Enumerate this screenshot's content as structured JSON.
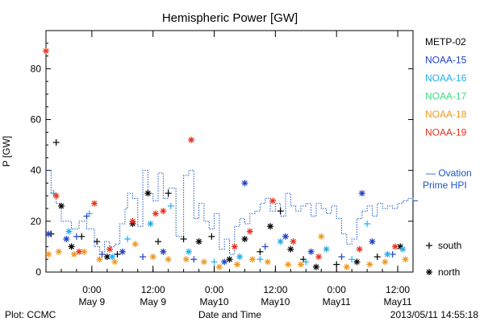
{
  "chart_data": {
    "type": "scatter",
    "title": "Hemispheric Power [GW]",
    "ylabel": "P [GW]",
    "xlabel": "Date and Time",
    "ylim": [
      0,
      95
    ],
    "yticks": [
      0,
      20,
      40,
      60,
      80
    ],
    "xlim": [
      "2013-05-08T15:00",
      "2013-05-11T15:00"
    ],
    "xticks": [
      {
        "t": "2013-05-09T00:00",
        "line1": "0:00",
        "line2": "May 9"
      },
      {
        "t": "2013-05-09T12:00",
        "line1": "12:00",
        "line2": "May 9"
      },
      {
        "t": "2013-05-10T00:00",
        "line1": "0:00",
        "line2": "May10"
      },
      {
        "t": "2013-05-10T12:00",
        "line1": "12:00",
        "line2": "May10"
      },
      {
        "t": "2013-05-11T00:00",
        "line1": "0:00",
        "line2": "May11"
      },
      {
        "t": "2013-05-11T12:00",
        "line1": "12:00",
        "line2": "May11"
      }
    ],
    "series": [
      {
        "name": "METP-02",
        "color": "#000000",
        "points": [
          [
            "2013-05-08T16:00",
            15,
            "south"
          ],
          [
            "2013-05-08T17:00",
            51,
            "south"
          ],
          [
            "2013-05-08T18:00",
            26,
            "north"
          ],
          [
            "2013-05-08T20:00",
            10,
            "north"
          ],
          [
            "2013-05-08T22:00",
            14,
            "south"
          ],
          [
            "2013-05-09T01:00",
            12,
            "south"
          ],
          [
            "2013-05-09T03:00",
            6,
            "north"
          ],
          [
            "2013-05-09T05:00",
            7,
            "south"
          ],
          [
            "2013-05-09T08:00",
            19,
            "north"
          ],
          [
            "2013-05-09T11:00",
            31,
            "north"
          ],
          [
            "2013-05-09T13:00",
            12,
            "south"
          ],
          [
            "2013-05-09T15:00",
            31,
            "south"
          ],
          [
            "2013-05-09T18:00",
            13,
            "south"
          ],
          [
            "2013-05-09T21:00",
            12,
            "north"
          ],
          [
            "2013-05-09T23:30",
            14,
            "south"
          ],
          [
            "2013-05-10T03:00",
            5,
            "north"
          ],
          [
            "2013-05-10T06:00",
            13,
            "north"
          ],
          [
            "2013-05-10T09:00",
            8,
            "south"
          ],
          [
            "2013-05-10T11:00",
            18,
            "north"
          ],
          [
            "2013-05-10T13:00",
            24,
            "south"
          ],
          [
            "2013-05-10T15:00",
            9,
            "north"
          ],
          [
            "2013-05-10T17:30",
            5,
            "south"
          ],
          [
            "2013-05-10T20:00",
            2,
            "north"
          ],
          [
            "2013-05-11T00:00",
            3,
            "south"
          ],
          [
            "2013-05-11T04:00",
            4,
            "north"
          ],
          [
            "2013-05-11T08:00",
            6,
            "south"
          ],
          [
            "2013-05-11T12:30",
            10,
            "north"
          ]
        ]
      },
      {
        "name": "NOAA-15",
        "color": "#1f3fbf",
        "points": [
          [
            "2013-05-08T15:30",
            15,
            "north"
          ],
          [
            "2013-05-08T19:00",
            13,
            "north"
          ],
          [
            "2013-05-08T21:00",
            14,
            "south"
          ],
          [
            "2013-05-08T23:00",
            22,
            "south"
          ],
          [
            "2013-05-09T02:00",
            7,
            "south"
          ],
          [
            "2013-05-09T06:00",
            8,
            "north"
          ],
          [
            "2013-05-09T10:00",
            6,
            "south"
          ],
          [
            "2013-05-09T14:00",
            8,
            "north"
          ],
          [
            "2013-05-09T20:00",
            5,
            "south"
          ],
          [
            "2013-05-10T02:00",
            4,
            "north"
          ],
          [
            "2013-05-10T06:00",
            35,
            "north"
          ],
          [
            "2013-05-10T10:00",
            10,
            "south"
          ],
          [
            "2013-05-10T14:00",
            14,
            "north"
          ],
          [
            "2013-05-10T19:00",
            8,
            "north"
          ],
          [
            "2013-05-11T01:00",
            6,
            "south"
          ],
          [
            "2013-05-11T05:00",
            31,
            "north"
          ],
          [
            "2013-05-11T07:00",
            12,
            "north"
          ],
          [
            "2013-05-11T11:00",
            7,
            "south"
          ]
        ]
      },
      {
        "name": "NOAA-16",
        "color": "#22aeee",
        "points": [
          [
            "2013-05-08T16:30",
            31,
            "south"
          ],
          [
            "2013-05-08T19:30",
            16,
            "north"
          ],
          [
            "2013-05-08T23:30",
            23,
            "south"
          ],
          [
            "2013-05-09T04:00",
            6,
            "north"
          ],
          [
            "2013-05-09T07:00",
            13,
            "south"
          ],
          [
            "2013-05-09T11:30",
            19,
            "north"
          ],
          [
            "2013-05-09T15:30",
            26,
            "south"
          ],
          [
            "2013-05-09T19:00",
            8,
            "north"
          ],
          [
            "2013-05-10T00:00",
            4,
            "south"
          ],
          [
            "2013-05-10T05:00",
            6,
            "north"
          ],
          [
            "2013-05-10T09:00",
            5,
            "south"
          ],
          [
            "2013-05-10T13:00",
            12,
            "north"
          ],
          [
            "2013-05-10T18:00",
            4,
            "south"
          ],
          [
            "2013-05-10T22:00",
            9,
            "north"
          ],
          [
            "2013-05-11T03:00",
            5,
            "south"
          ],
          [
            "2013-05-11T06:00",
            19,
            "south"
          ],
          [
            "2013-05-11T10:00",
            7,
            "north"
          ],
          [
            "2013-05-11T13:00",
            9,
            "north"
          ]
        ]
      },
      {
        "name": "NOAA-17",
        "color": "#3ddc84",
        "points": []
      },
      {
        "name": "NOAA-18",
        "color": "#f0961e",
        "points": [
          [
            "2013-05-08T15:30",
            7,
            "north"
          ],
          [
            "2013-05-08T17:30",
            8,
            "north"
          ],
          [
            "2013-05-08T20:30",
            7,
            "north"
          ],
          [
            "2013-05-08T22:30",
            8,
            "north"
          ],
          [
            "2013-05-09T01:30",
            5,
            "north"
          ],
          [
            "2013-05-09T04:30",
            4,
            "north"
          ],
          [
            "2013-05-09T08:30",
            11,
            "north"
          ],
          [
            "2013-05-09T12:00",
            6,
            "north"
          ],
          [
            "2013-05-09T15:00",
            5,
            "north"
          ],
          [
            "2013-05-09T18:30",
            5,
            "north"
          ],
          [
            "2013-05-09T22:00",
            4,
            "north"
          ],
          [
            "2013-05-10T01:00",
            2,
            "north"
          ],
          [
            "2013-05-10T04:30",
            3,
            "north"
          ],
          [
            "2013-05-10T07:30",
            5,
            "north"
          ],
          [
            "2013-05-10T10:30",
            4,
            "north"
          ],
          [
            "2013-05-10T14:30",
            3,
            "north"
          ],
          [
            "2013-05-10T17:00",
            3,
            "north"
          ],
          [
            "2013-05-10T21:00",
            14,
            "north"
          ],
          [
            "2013-05-11T02:00",
            2,
            "north"
          ],
          [
            "2013-05-11T06:30",
            3,
            "north"
          ],
          [
            "2013-05-11T09:30",
            4,
            "north"
          ],
          [
            "2013-05-11T13:30",
            5,
            "north"
          ]
        ]
      },
      {
        "name": "NOAA-19",
        "color": "#e8301e",
        "points": [
          [
            "2013-05-08T15:00",
            87,
            "north"
          ],
          [
            "2013-05-08T17:00",
            30,
            "north"
          ],
          [
            "2013-05-08T21:30",
            8,
            "north"
          ],
          [
            "2013-05-09T00:30",
            27,
            "north"
          ],
          [
            "2013-05-09T03:30",
            9,
            "north"
          ],
          [
            "2013-05-09T08:00",
            20,
            "north"
          ],
          [
            "2013-05-09T12:30",
            23,
            "north"
          ],
          [
            "2013-05-09T14:00",
            24,
            "north"
          ],
          [
            "2013-05-09T19:30",
            52,
            "north"
          ],
          [
            "2013-05-10T04:00",
            10,
            "north"
          ],
          [
            "2013-05-10T07:00",
            16,
            "north"
          ],
          [
            "2013-05-10T11:30",
            28,
            "north"
          ],
          [
            "2013-05-10T15:30",
            12,
            "north"
          ],
          [
            "2013-05-10T20:30",
            6,
            "north"
          ],
          [
            "2013-05-11T04:30",
            9,
            "north"
          ],
          [
            "2013-05-11T11:30",
            10,
            "north"
          ]
        ]
      }
    ],
    "ovation": {
      "name_line1": "— Ovation",
      "name_line2": "Prime HPI",
      "color": "#1a56c4",
      "points": [
        [
          "2013-05-08T15:00",
          40
        ],
        [
          "2013-05-08T16:00",
          31
        ],
        [
          "2013-05-08T17:00",
          27
        ],
        [
          "2013-05-08T18:00",
          20
        ],
        [
          "2013-05-08T20:00",
          17
        ],
        [
          "2013-05-08T21:30",
          20
        ],
        [
          "2013-05-08T23:00",
          17
        ],
        [
          "2013-05-09T00:30",
          10
        ],
        [
          "2013-05-09T01:30",
          8
        ],
        [
          "2013-05-09T02:30",
          12
        ],
        [
          "2013-05-09T03:30",
          10
        ],
        [
          "2013-05-09T04:30",
          11
        ],
        [
          "2013-05-09T05:30",
          19
        ],
        [
          "2013-05-09T06:30",
          25
        ],
        [
          "2013-05-09T07:00",
          31
        ],
        [
          "2013-05-09T08:00",
          29
        ],
        [
          "2013-05-09T09:00",
          18
        ],
        [
          "2013-05-09T10:00",
          40
        ],
        [
          "2013-05-09T11:00",
          31
        ],
        [
          "2013-05-09T12:00",
          28
        ],
        [
          "2013-05-09T13:00",
          39
        ],
        [
          "2013-05-09T14:00",
          29
        ],
        [
          "2013-05-09T15:00",
          33
        ],
        [
          "2013-05-09T16:30",
          14
        ],
        [
          "2013-05-09T18:00",
          38
        ],
        [
          "2013-05-09T19:00",
          40
        ],
        [
          "2013-05-09T20:00",
          21
        ],
        [
          "2013-05-09T21:00",
          27
        ],
        [
          "2013-05-09T22:00",
          20
        ],
        [
          "2013-05-09T23:00",
          17
        ],
        [
          "2013-05-10T00:00",
          23
        ],
        [
          "2013-05-10T01:00",
          9
        ],
        [
          "2013-05-10T02:00",
          13
        ],
        [
          "2013-05-10T03:00",
          7
        ],
        [
          "2013-05-10T04:00",
          18
        ],
        [
          "2013-05-10T05:00",
          21
        ],
        [
          "2013-05-10T06:00",
          19
        ],
        [
          "2013-05-10T07:00",
          23
        ],
        [
          "2013-05-10T08:00",
          24
        ],
        [
          "2013-05-10T09:00",
          27
        ],
        [
          "2013-05-10T10:00",
          29
        ],
        [
          "2013-05-10T11:00",
          24
        ],
        [
          "2013-05-10T12:00",
          27
        ],
        [
          "2013-05-10T13:00",
          22
        ],
        [
          "2013-05-10T14:00",
          31
        ],
        [
          "2013-05-10T15:00",
          26
        ],
        [
          "2013-05-10T16:00",
          24
        ],
        [
          "2013-05-10T17:00",
          26
        ],
        [
          "2013-05-10T18:00",
          27
        ],
        [
          "2013-05-10T19:00",
          22
        ],
        [
          "2013-05-10T20:00",
          27
        ],
        [
          "2013-05-10T21:00",
          25
        ],
        [
          "2013-05-10T22:00",
          23
        ],
        [
          "2013-05-10T23:00",
          26
        ],
        [
          "2013-05-11T00:00",
          21
        ],
        [
          "2013-05-11T01:00",
          15
        ],
        [
          "2013-05-11T02:00",
          11
        ],
        [
          "2013-05-11T03:00",
          13
        ],
        [
          "2013-05-11T04:00",
          21
        ],
        [
          "2013-05-11T05:00",
          24
        ],
        [
          "2013-05-11T06:00",
          26
        ],
        [
          "2013-05-11T07:00",
          22
        ],
        [
          "2013-05-11T08:00",
          27
        ],
        [
          "2013-05-11T09:00",
          25
        ],
        [
          "2013-05-11T10:00",
          26
        ],
        [
          "2013-05-11T11:00",
          25
        ],
        [
          "2013-05-11T12:00",
          27
        ],
        [
          "2013-05-11T13:00",
          28
        ],
        [
          "2013-05-11T14:00",
          29
        ],
        [
          "2013-05-11T15:00",
          28
        ]
      ]
    },
    "markers": [
      {
        "symbol": "+",
        "label": "south"
      },
      {
        "symbol": "*",
        "label": "north"
      }
    ],
    "legend_position": "right",
    "grid": false
  },
  "footer": {
    "left": "Plot: CCMC",
    "center": "Date and Time",
    "right": "2013/05/11 14:55:18"
  }
}
